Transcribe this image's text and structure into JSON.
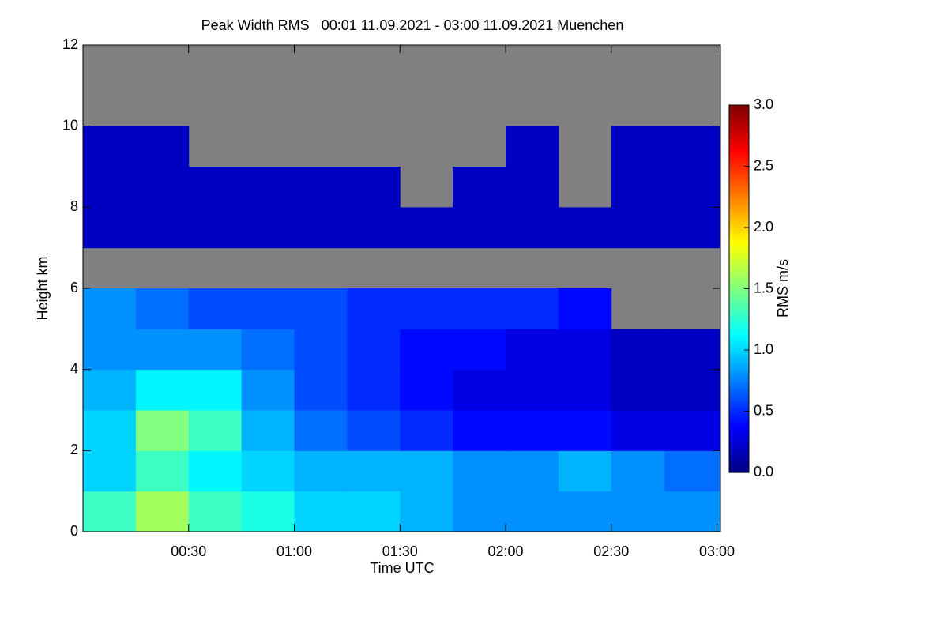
{
  "chart_data": {
    "type": "heatmap",
    "title": "Peak Width RMS   00:01 11.09.2021 - 03:00 11.09.2021 Muenchen",
    "x_label": "Time UTC",
    "y_label": "Height km",
    "colorbar_label": "RMS m/s",
    "colormap": "jet",
    "missing_color": "#808080",
    "xlim": [
      0,
      181
    ],
    "ylim": [
      0,
      12
    ],
    "clim": [
      0,
      3
    ],
    "xticks": [
      {
        "value": 30,
        "label": "00:30"
      },
      {
        "value": 60,
        "label": "01:00"
      },
      {
        "value": 90,
        "label": "01:30"
      },
      {
        "value": 120,
        "label": "02:00"
      },
      {
        "value": 150,
        "label": "02:30"
      },
      {
        "value": 180,
        "label": "03:00"
      }
    ],
    "yticks": [
      0,
      2,
      4,
      6,
      8,
      10,
      12
    ],
    "cticks": [
      {
        "value": 0,
        "label": "0.0"
      },
      0.5,
      {
        "value": 1,
        "label": "1.0"
      },
      1.5,
      {
        "value": 2,
        "label": "2.0"
      },
      2.5,
      {
        "value": 3,
        "label": "3.0"
      }
    ],
    "x_bins": [
      0,
      15,
      30,
      45,
      60,
      75,
      90,
      105,
      120,
      135,
      150,
      165,
      181
    ],
    "y_bins": [
      0,
      1,
      2,
      3,
      4,
      5,
      6,
      7,
      8,
      9,
      10,
      11,
      12
    ],
    "z": [
      [
        1.3,
        1.6,
        1.3,
        1.2,
        1.0,
        1.0,
        0.9,
        0.8,
        0.8,
        0.8,
        0.8,
        0.8
      ],
      [
        1.0,
        1.3,
        1.1,
        1.0,
        0.9,
        0.9,
        0.9,
        0.8,
        0.8,
        0.9,
        0.8,
        0.7
      ],
      [
        1.0,
        1.5,
        1.3,
        0.9,
        0.7,
        0.6,
        0.5,
        0.4,
        0.4,
        0.4,
        0.3,
        0.3
      ],
      [
        0.9,
        1.1,
        1.1,
        0.8,
        0.6,
        0.5,
        0.4,
        0.3,
        0.3,
        0.3,
        0.2,
        0.2
      ],
      [
        0.8,
        0.8,
        0.8,
        0.7,
        0.6,
        0.5,
        0.4,
        0.4,
        0.3,
        0.3,
        0.2,
        0.2
      ],
      [
        0.8,
        0.7,
        0.6,
        0.6,
        0.6,
        0.5,
        0.5,
        0.5,
        0.5,
        0.4,
        null,
        null
      ],
      [
        null,
        null,
        null,
        null,
        null,
        null,
        null,
        null,
        null,
        null,
        null,
        null
      ],
      [
        0.2,
        0.2,
        0.2,
        0.2,
        0.2,
        0.2,
        0.2,
        0.2,
        0.2,
        0.2,
        0.2,
        0.2
      ],
      [
        0.2,
        0.2,
        0.2,
        0.2,
        0.2,
        0.2,
        null,
        0.2,
        0.2,
        null,
        0.2,
        0.2
      ],
      [
        0.2,
        0.2,
        null,
        null,
        null,
        null,
        null,
        null,
        0.2,
        null,
        0.2,
        0.2
      ],
      [
        null,
        null,
        null,
        null,
        null,
        null,
        null,
        null,
        null,
        null,
        null,
        null
      ],
      [
        null,
        null,
        null,
        null,
        null,
        null,
        null,
        null,
        null,
        null,
        null,
        null
      ]
    ]
  }
}
